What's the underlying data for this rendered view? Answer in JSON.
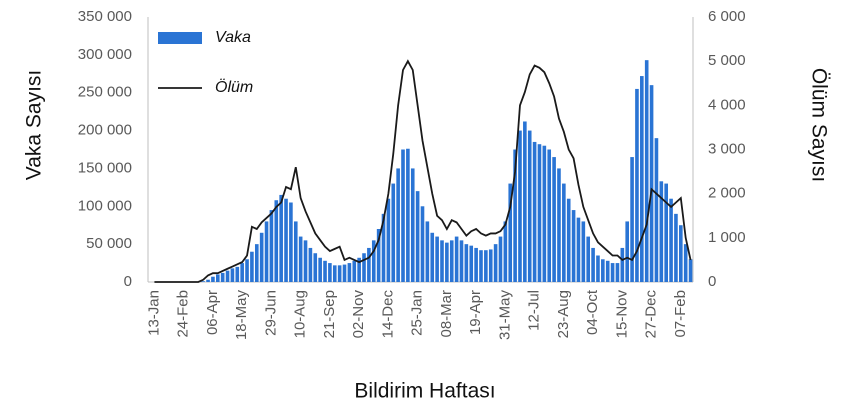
{
  "chart_data": {
    "type": "bar-line",
    "xlabel": "Bildirim Haftası",
    "ylabel": "Vaka Sayısı",
    "y2label": "Ölüm Sayısı",
    "categories": [
      "13-Jan",
      null,
      null,
      null,
      null,
      null,
      "24-Feb",
      null,
      null,
      null,
      null,
      null,
      "06-Apr",
      null,
      null,
      null,
      null,
      null,
      "18-May",
      null,
      null,
      null,
      null,
      null,
      "29-Jun",
      null,
      null,
      null,
      null,
      null,
      "10-Aug",
      null,
      null,
      null,
      null,
      null,
      "21-Sep",
      null,
      null,
      null,
      null,
      null,
      "02-Nov",
      null,
      null,
      null,
      null,
      null,
      "14-Dec",
      null,
      null,
      null,
      null,
      null,
      "25-Jan",
      null,
      null,
      null,
      null,
      null,
      "08-Mar",
      null,
      null,
      null,
      null,
      null,
      "19-Apr",
      null,
      null,
      null,
      null,
      null,
      "31-May",
      null,
      null,
      null,
      null,
      null,
      "12-Jul",
      null,
      null,
      null,
      null,
      null,
      "23-Aug",
      null,
      null,
      null,
      null,
      null,
      "04-Oct",
      null,
      null,
      null,
      null,
      null,
      "15-Nov",
      null,
      null,
      null,
      null,
      null,
      "27-Dec",
      null,
      null,
      null,
      null,
      null,
      "07-Feb",
      null,
      null
    ],
    "series": [
      {
        "name": "Vaka",
        "kind": "bar",
        "color": "#2a74d4",
        "values": [
          0,
          0,
          0,
          0,
          0,
          0,
          0,
          0,
          0,
          0,
          1000,
          3000,
          7000,
          10000,
          12000,
          15000,
          18000,
          20000,
          25000,
          30000,
          40000,
          50000,
          65000,
          80000,
          95000,
          108000,
          115000,
          110000,
          105000,
          80000,
          60000,
          55000,
          45000,
          38000,
          32000,
          28000,
          25000,
          22000,
          22000,
          23000,
          25000,
          28000,
          32000,
          38000,
          45000,
          55000,
          70000,
          90000,
          110000,
          130000,
          150000,
          175000,
          176000,
          150000,
          120000,
          100000,
          80000,
          65000,
          60000,
          55000,
          52000,
          55000,
          60000,
          55000,
          50000,
          48000,
          45000,
          42000,
          42000,
          43000,
          50000,
          60000,
          80000,
          130000,
          175000,
          200000,
          212000,
          200000,
          185000,
          182000,
          180000,
          175000,
          165000,
          150000,
          130000,
          110000,
          95000,
          85000,
          80000,
          60000,
          45000,
          35000,
          30000,
          28000,
          25000,
          25000,
          45000,
          80000,
          165000,
          255000,
          272000,
          293000,
          260000,
          190000,
          133000,
          130000,
          110000,
          90000,
          75000,
          50000,
          30000
        ]
      },
      {
        "name": "Ölüm",
        "kind": "line",
        "axis": "y2",
        "color": "#1a1a1a",
        "values": [
          0,
          0,
          0,
          0,
          0,
          0,
          0,
          0,
          0,
          0,
          50,
          150,
          200,
          200,
          250,
          300,
          350,
          400,
          450,
          600,
          1250,
          1200,
          1350,
          1450,
          1550,
          1700,
          1800,
          2150,
          2100,
          2600,
          1900,
          1600,
          1350,
          1100,
          950,
          800,
          700,
          750,
          800,
          500,
          550,
          500,
          450,
          500,
          550,
          700,
          950,
          1400,
          2000,
          2900,
          4000,
          4800,
          5000,
          4800,
          4000,
          3200,
          2600,
          2000,
          1500,
          1400,
          1200,
          1400,
          1350,
          1200,
          1050,
          1150,
          1200,
          1100,
          1050,
          1100,
          1100,
          1150,
          1300,
          1700,
          2500,
          4000,
          4300,
          4700,
          4900,
          4850,
          4750,
          4500,
          4200,
          3700,
          3400,
          3000,
          2800,
          2200,
          1700,
          1400,
          1100,
          900,
          800,
          700,
          600,
          600,
          500,
          550,
          500,
          700,
          1000,
          1300,
          2100,
          2000,
          1900,
          1800,
          1700,
          1800,
          1900,
          1000,
          500
        ]
      }
    ],
    "ylim": [
      0,
      350000
    ],
    "yticks": [
      0,
      {
        "value": 50000,
        "label": "50 000"
      },
      {
        "value": 100000,
        "label": "100 000"
      },
      {
        "value": 150000,
        "label": "150 000"
      },
      {
        "value": 200000,
        "label": "200 000"
      },
      {
        "value": 250000,
        "label": "250 000"
      },
      {
        "value": 300000,
        "label": "300 000"
      },
      {
        "value": 350000,
        "label": "350 000"
      }
    ],
    "y2lim": [
      0,
      6000
    ],
    "y2ticks": [
      0,
      {
        "value": 1000,
        "label": "1 000"
      },
      {
        "value": 2000,
        "label": "2 000"
      },
      {
        "value": 3000,
        "label": "3 000"
      },
      {
        "value": 4000,
        "label": "4 000"
      },
      {
        "value": 5000,
        "label": "5 000"
      },
      {
        "value": 6000,
        "label": "6 000"
      }
    ],
    "legend": "top-left",
    "grid": false
  }
}
